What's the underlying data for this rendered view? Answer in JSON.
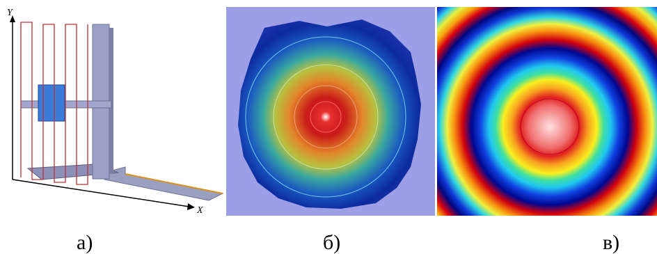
{
  "figure": {
    "panels": [
      {
        "label": "а)",
        "axes": {
          "x": "X",
          "y": "Y"
        }
      },
      {
        "label": "б)"
      },
      {
        "label": "в)"
      }
    ]
  }
}
